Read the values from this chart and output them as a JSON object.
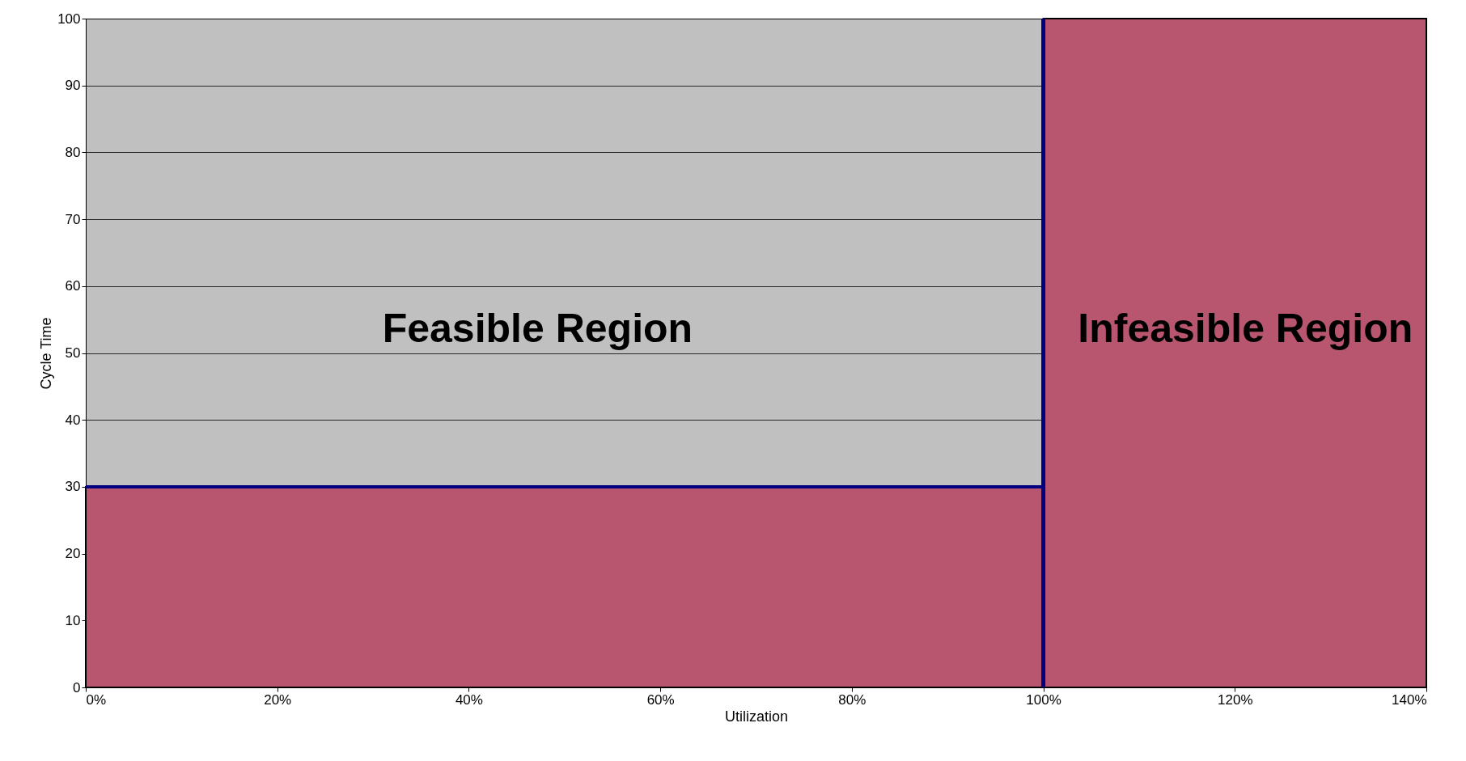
{
  "chart_data": {
    "type": "area",
    "xlabel": "Utilization",
    "ylabel": "Cycle Time",
    "xlim": [
      0,
      140
    ],
    "xticks": [
      {
        "value": 0,
        "label": "0%"
      },
      {
        "value": 20,
        "label": "20%"
      },
      {
        "value": 40,
        "label": "40%"
      },
      {
        "value": 60,
        "label": "60%"
      },
      {
        "value": 80,
        "label": "80%"
      },
      {
        "value": 100,
        "label": "100%"
      },
      {
        "value": 120,
        "label": "120%"
      },
      {
        "value": 140,
        "label": "140%"
      }
    ],
    "ylim": [
      0,
      100
    ],
    "yticks": [
      0,
      10,
      20,
      30,
      40,
      50,
      60,
      70,
      80,
      90,
      100
    ],
    "series": [
      {
        "color": "#b9566f",
        "x": [
          0,
          100
        ],
        "values": [
          30,
          30
        ]
      },
      {
        "color": "#b9566f",
        "x": [
          100,
          140
        ],
        "values": [
          100,
          100
        ]
      },
      {
        "type": "line",
        "color": "#000080",
        "x": [
          0,
          100
        ],
        "values": [
          30,
          30
        ]
      }
    ],
    "ref_lines": [
      {
        "axis": "x",
        "value": 100,
        "color": "#000080"
      }
    ],
    "annotations": [
      "Feasible Region",
      "Infeasible Region"
    ],
    "grid": "y"
  }
}
